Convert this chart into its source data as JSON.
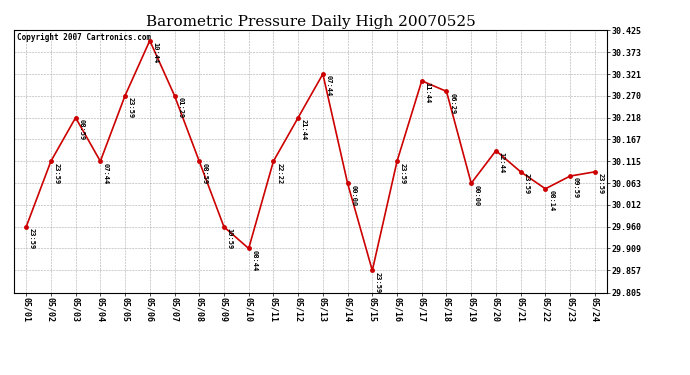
{
  "title": "Barometric Pressure Daily High 20070525",
  "copyright": "Copyright 2007 Cartronics.com",
  "background_color": "#ffffff",
  "plot_bg_color": "#ffffff",
  "grid_color": "#aaaaaa",
  "line_color": "#cc0000",
  "marker_color": "#cc0000",
  "dates": [
    "05/01",
    "05/02",
    "05/03",
    "05/04",
    "05/05",
    "05/06",
    "05/07",
    "05/08",
    "05/09",
    "05/10",
    "05/11",
    "05/12",
    "05/13",
    "05/14",
    "05/15",
    "05/16",
    "05/17",
    "05/18",
    "05/19",
    "05/20",
    "05/21",
    "05/22",
    "05/23",
    "05/24"
  ],
  "values": [
    29.96,
    30.115,
    30.218,
    30.115,
    30.27,
    30.4,
    30.27,
    30.115,
    29.96,
    29.909,
    30.115,
    30.218,
    30.321,
    30.063,
    29.857,
    30.115,
    30.305,
    30.28,
    30.063,
    30.14,
    30.09,
    30.05,
    30.08,
    30.09
  ],
  "time_labels": [
    "23:59",
    "23:59",
    "08:59",
    "07:44",
    "23:59",
    "10:44",
    "01:29",
    "08:59",
    "10:59",
    "08:44",
    "22:22",
    "21:44",
    "07:44",
    "00:00",
    "23:59",
    "23:59",
    "11:44",
    "06:29",
    "00:00",
    "12:44",
    "23:59",
    "08:14",
    "09:59",
    "23:59"
  ],
  "ylim_min": 29.805,
  "ylim_max": 30.425,
  "yticks": [
    29.805,
    29.857,
    29.909,
    29.96,
    30.012,
    30.063,
    30.115,
    30.167,
    30.218,
    30.27,
    30.321,
    30.373,
    30.425
  ],
  "title_fontsize": 11,
  "tick_fontsize": 6,
  "label_fontsize": 5,
  "copyright_fontsize": 5.5
}
